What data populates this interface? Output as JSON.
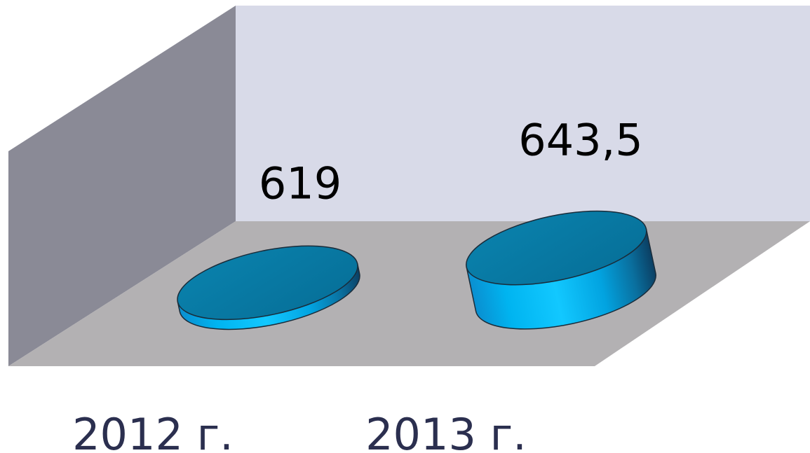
{
  "chart_data": {
    "type": "bar",
    "style": "3d-cylinder",
    "categories": [
      "2012 г.",
      "2013 г."
    ],
    "values": [
      619,
      643.5
    ],
    "data_labels": [
      "619",
      "643,5"
    ],
    "title": "",
    "xlabel": "",
    "ylabel": "",
    "grid": false,
    "legend": "none",
    "colors": {
      "bar_light": "#12c8ff",
      "bar_mid": "#00a6e6",
      "bar_dark": "#0b3f63",
      "bar_top": "#0878a3",
      "back_wall": "#d8dae8",
      "side_wall": "#8a8a96",
      "floor": "#b3b1b3",
      "category_text": "#2b2f4f",
      "label_text": "#000000"
    }
  }
}
